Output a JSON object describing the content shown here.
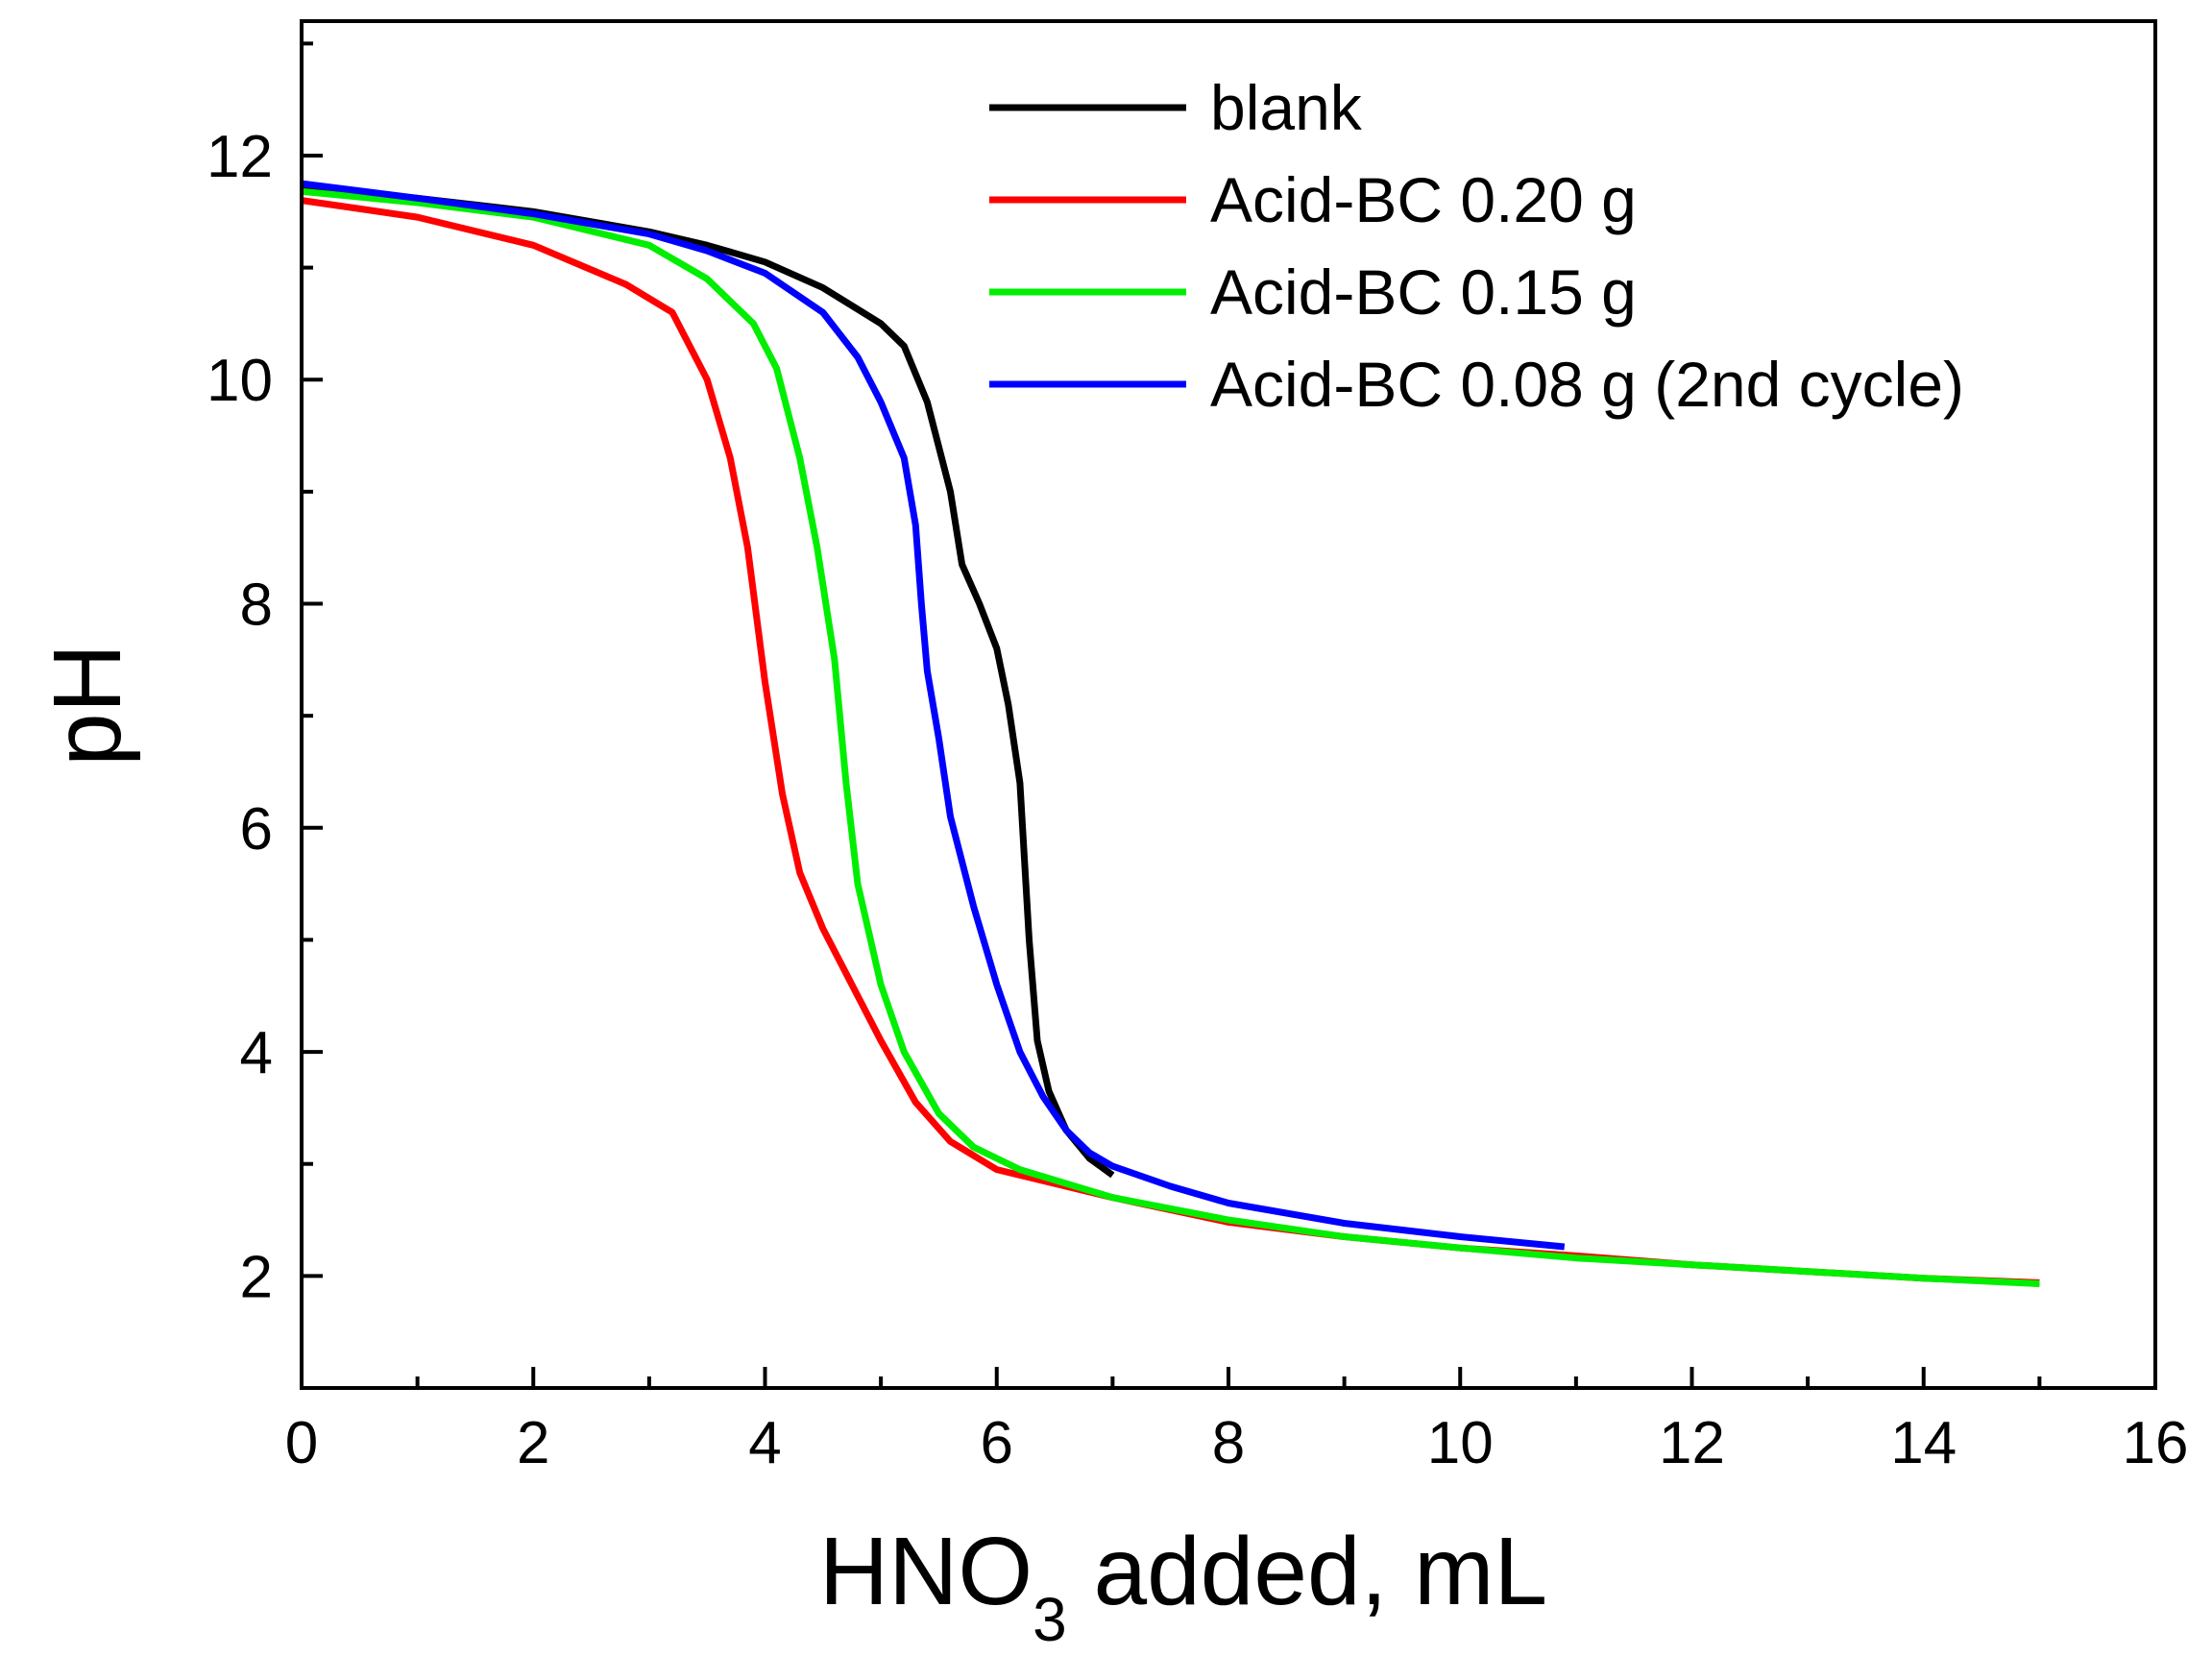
{
  "chart_data": {
    "type": "line",
    "title": "",
    "xlabel": {
      "main": "HNO",
      "sub": "3",
      "rest": " added, mL"
    },
    "ylabel": "pH",
    "xlim": [
      0,
      16
    ],
    "ylim": [
      1,
      13.2
    ],
    "xticks": [
      0,
      2,
      4,
      6,
      8,
      10,
      12,
      14,
      16
    ],
    "xtick_labels": [
      "0",
      "2",
      "4",
      "6",
      "8",
      "10",
      "12",
      "14",
      "16"
    ],
    "yticks": [
      2,
      4,
      6,
      8,
      10,
      12
    ],
    "ytick_labels": [
      "2",
      "4",
      "6",
      "8",
      "10",
      "12"
    ],
    "x_minor_step": 1,
    "y_minor_step": 1,
    "grid": false,
    "legend_position": "top-right",
    "series": [
      {
        "name": "blank",
        "color": "#000000",
        "points": [
          [
            0,
            11.72
          ],
          [
            1,
            11.62
          ],
          [
            2,
            11.5
          ],
          [
            3,
            11.32
          ],
          [
            3.5,
            11.2
          ],
          [
            4,
            11.05
          ],
          [
            4.5,
            10.82
          ],
          [
            5,
            10.5
          ],
          [
            5.2,
            10.3
          ],
          [
            5.4,
            9.8
          ],
          [
            5.6,
            9.0
          ],
          [
            5.7,
            8.35
          ],
          [
            5.85,
            8.0
          ],
          [
            6.0,
            7.6
          ],
          [
            6.1,
            7.1
          ],
          [
            6.2,
            6.4
          ],
          [
            6.28,
            5.0
          ],
          [
            6.35,
            4.1
          ],
          [
            6.45,
            3.65
          ],
          [
            6.6,
            3.3
          ],
          [
            6.8,
            3.05
          ],
          [
            7.0,
            2.9
          ]
        ]
      },
      {
        "name": "Acid-BC 0.20 g",
        "color": "#ff0000",
        "points": [
          [
            0,
            11.6
          ],
          [
            1,
            11.45
          ],
          [
            2,
            11.2
          ],
          [
            2.8,
            10.85
          ],
          [
            3.2,
            10.6
          ],
          [
            3.5,
            10.0
          ],
          [
            3.7,
            9.3
          ],
          [
            3.85,
            8.5
          ],
          [
            4.0,
            7.3
          ],
          [
            4.15,
            6.3
          ],
          [
            4.3,
            5.6
          ],
          [
            4.5,
            5.1
          ],
          [
            4.7,
            4.7
          ],
          [
            5.0,
            4.1
          ],
          [
            5.3,
            3.55
          ],
          [
            5.6,
            3.2
          ],
          [
            6.0,
            2.95
          ],
          [
            7,
            2.7
          ],
          [
            8,
            2.48
          ],
          [
            9,
            2.35
          ],
          [
            10,
            2.25
          ],
          [
            11,
            2.18
          ],
          [
            12,
            2.1
          ],
          [
            13,
            2.04
          ],
          [
            14,
            1.98
          ],
          [
            15,
            1.94
          ]
        ]
      },
      {
        "name": "Acid-BC 0.15 g",
        "color": "#00ee00",
        "points": [
          [
            0,
            11.68
          ],
          [
            1,
            11.58
          ],
          [
            2,
            11.45
          ],
          [
            3,
            11.2
          ],
          [
            3.5,
            10.9
          ],
          [
            3.9,
            10.5
          ],
          [
            4.1,
            10.1
          ],
          [
            4.3,
            9.3
          ],
          [
            4.45,
            8.5
          ],
          [
            4.6,
            7.5
          ],
          [
            4.7,
            6.4
          ],
          [
            4.8,
            5.5
          ],
          [
            5.0,
            4.6
          ],
          [
            5.2,
            4.0
          ],
          [
            5.5,
            3.45
          ],
          [
            5.8,
            3.15
          ],
          [
            6.2,
            2.95
          ],
          [
            7,
            2.7
          ],
          [
            8,
            2.5
          ],
          [
            9,
            2.35
          ],
          [
            10,
            2.25
          ],
          [
            11,
            2.16
          ],
          [
            12,
            2.1
          ],
          [
            13,
            2.04
          ],
          [
            14,
            1.98
          ],
          [
            15,
            1.93
          ]
        ]
      },
      {
        "name": "Acid-BC 0.08 g (2nd cycle)",
        "color": "#0000ff",
        "points": [
          [
            0,
            11.75
          ],
          [
            1,
            11.62
          ],
          [
            2,
            11.48
          ],
          [
            3,
            11.3
          ],
          [
            3.5,
            11.15
          ],
          [
            4,
            10.95
          ],
          [
            4.5,
            10.6
          ],
          [
            4.8,
            10.2
          ],
          [
            5.0,
            9.8
          ],
          [
            5.2,
            9.3
          ],
          [
            5.3,
            8.7
          ],
          [
            5.35,
            8.0
          ],
          [
            5.4,
            7.4
          ],
          [
            5.5,
            6.8
          ],
          [
            5.6,
            6.1
          ],
          [
            5.8,
            5.3
          ],
          [
            6.0,
            4.6
          ],
          [
            6.2,
            4.0
          ],
          [
            6.4,
            3.6
          ],
          [
            6.6,
            3.3
          ],
          [
            6.8,
            3.1
          ],
          [
            7,
            2.98
          ],
          [
            7.5,
            2.8
          ],
          [
            8,
            2.65
          ],
          [
            9,
            2.47
          ],
          [
            10,
            2.35
          ],
          [
            10.9,
            2.26
          ]
        ]
      }
    ]
  }
}
